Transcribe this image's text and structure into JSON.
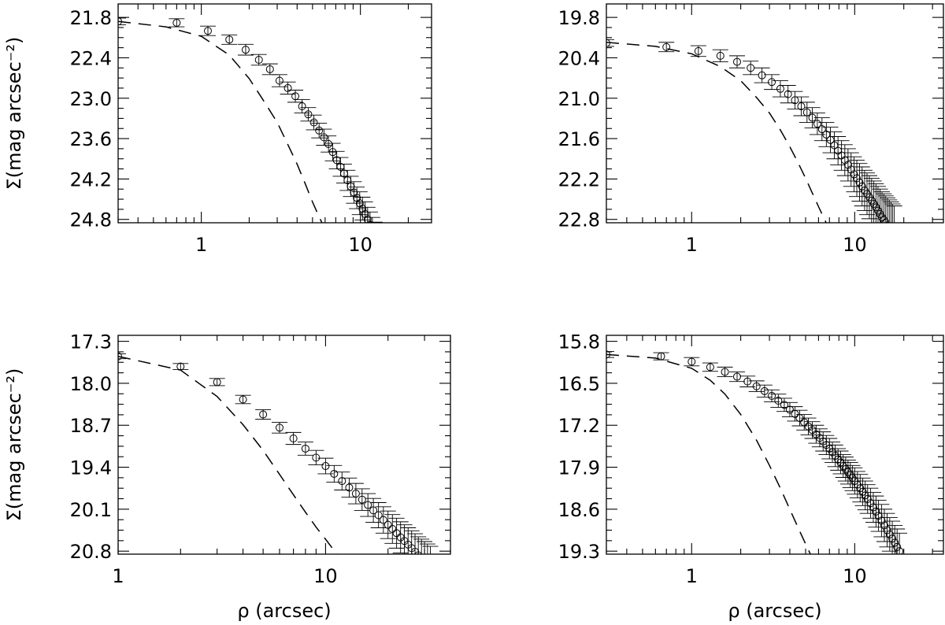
{
  "chart_data": [
    {
      "type": "scatter",
      "xscale": "log",
      "xlim": [
        0.3,
        28
      ],
      "ylim": [
        21.6,
        24.85
      ],
      "yaxis_inverted": true,
      "yticks": [
        "21.8",
        "22.4",
        "23.0",
        "23.6",
        "24.2",
        "24.8"
      ],
      "xticks": [
        "1",
        "10"
      ],
      "ylabel": "Σ(mag arcsec⁻²)",
      "xlabel": "",
      "series": [
        {
          "kind": "points_with_errors",
          "x": [
            0.3,
            0.7,
            1.1,
            1.5,
            1.9,
            2.3,
            2.7,
            3.1,
            3.5,
            3.9,
            4.3,
            4.7,
            5.1,
            5.5,
            5.9,
            6.3,
            6.7,
            7.1,
            7.5,
            7.9,
            8.3,
            8.7,
            9.1,
            9.5,
            9.9,
            10.3,
            10.7,
            11.1,
            11.5,
            11.9,
            12.3
          ],
          "y": [
            21.86,
            21.88,
            22.0,
            22.13,
            22.28,
            22.43,
            22.57,
            22.74,
            22.85,
            22.97,
            23.12,
            23.24,
            23.36,
            23.48,
            23.58,
            23.68,
            23.8,
            23.92,
            24.02,
            24.12,
            24.22,
            24.31,
            24.4,
            24.48,
            24.56,
            24.64,
            24.72,
            24.8,
            24.88,
            24.96,
            25.04
          ],
          "yerr": [
            0.05,
            0.06,
            0.07,
            0.07,
            0.08,
            0.08,
            0.08,
            0.09,
            0.09,
            0.09,
            0.1,
            0.1,
            0.11,
            0.11,
            0.12,
            0.12,
            0.13,
            0.13,
            0.14,
            0.14,
            0.15,
            0.15,
            0.16,
            0.16,
            0.17,
            0.17,
            0.18,
            0.18,
            0.19,
            0.19,
            0.2
          ]
        },
        {
          "kind": "dashed_line",
          "x": [
            0.3,
            0.6,
            1.0,
            1.5,
            2.0,
            2.5,
            3.0,
            3.5,
            4.0,
            4.5,
            5.0,
            5.5,
            6.0
          ],
          "y": [
            21.86,
            21.94,
            22.08,
            22.36,
            22.71,
            23.06,
            23.36,
            23.69,
            23.98,
            24.27,
            24.54,
            24.76,
            24.95
          ]
        }
      ]
    },
    {
      "type": "scatter",
      "xscale": "log",
      "xlim": [
        0.3,
        35
      ],
      "ylim": [
        19.6,
        22.85
      ],
      "yaxis_inverted": true,
      "yticks": [
        "19.8",
        "20.4",
        "21.0",
        "21.6",
        "22.2",
        "22.8"
      ],
      "xticks": [
        "1",
        "10"
      ],
      "ylabel": "",
      "xlabel": "",
      "series": [
        {
          "kind": "points_with_errors",
          "x": [
            0.3,
            0.7,
            1.1,
            1.5,
            1.9,
            2.3,
            2.7,
            3.1,
            3.5,
            3.9,
            4.3,
            4.7,
            5.1,
            5.5,
            5.9,
            6.3,
            6.7,
            7.1,
            7.5,
            7.9,
            8.3,
            8.7,
            9.1,
            9.5,
            9.9,
            10.3,
            10.7,
            11.1,
            11.5,
            11.9,
            12.3,
            12.7,
            13.1,
            13.5,
            13.9,
            14.3,
            14.7,
            15.1,
            15.5,
            15.9,
            16.3,
            16.7,
            17.1,
            17.5
          ],
          "y": [
            20.18,
            20.24,
            20.3,
            20.37,
            20.46,
            20.55,
            20.66,
            20.76,
            20.86,
            20.94,
            21.03,
            21.12,
            21.21,
            21.29,
            21.38,
            21.46,
            21.54,
            21.62,
            21.7,
            21.78,
            21.85,
            21.92,
            21.99,
            22.06,
            22.13,
            22.19,
            22.25,
            22.31,
            22.37,
            22.42,
            22.47,
            22.52,
            22.57,
            22.62,
            22.67,
            22.72,
            22.77,
            22.81,
            22.85,
            22.89,
            22.93,
            22.97,
            23.01,
            23.05
          ],
          "yerr": [
            0.05,
            0.07,
            0.08,
            0.09,
            0.09,
            0.1,
            0.11,
            0.11,
            0.12,
            0.13,
            0.13,
            0.14,
            0.15,
            0.15,
            0.16,
            0.17,
            0.18,
            0.19,
            0.2,
            0.21,
            0.22,
            0.23,
            0.24,
            0.25,
            0.26,
            0.27,
            0.28,
            0.29,
            0.3,
            0.31,
            0.32,
            0.33,
            0.34,
            0.35,
            0.36,
            0.37,
            0.38,
            0.39,
            0.4,
            0.41,
            0.42,
            0.43,
            0.44,
            0.45
          ]
        },
        {
          "kind": "dashed_line",
          "x": [
            0.3,
            0.6,
            1.0,
            1.5,
            2.0,
            2.5,
            3.0,
            3.5,
            4.0,
            4.5,
            5.0,
            5.5,
            6.0,
            6.5,
            7.0
          ],
          "y": [
            20.17,
            20.23,
            20.34,
            20.53,
            20.74,
            20.99,
            21.22,
            21.47,
            21.72,
            21.96,
            22.19,
            22.41,
            22.61,
            22.79,
            22.95
          ]
        }
      ]
    },
    {
      "type": "scatter",
      "xscale": "log",
      "xlim": [
        1,
        40
      ],
      "ylim": [
        17.2,
        20.85
      ],
      "yaxis_inverted": true,
      "yticks": [
        "17.3",
        "18.0",
        "18.7",
        "19.4",
        "20.1",
        "20.8"
      ],
      "xticks": [
        "1",
        "10"
      ],
      "ylabel": "Σ(mag arcsec⁻²)",
      "xlabel": "ρ (arcsec)",
      "series": [
        {
          "kind": "points_with_errors",
          "x": [
            1,
            2,
            3,
            4,
            5,
            6,
            7,
            8,
            9,
            10,
            11,
            12,
            13,
            14,
            15,
            16,
            17,
            18,
            19,
            20,
            21,
            22,
            23,
            24,
            25,
            26,
            27,
            28,
            29,
            30,
            31,
            32
          ],
          "y": [
            17.55,
            17.72,
            17.98,
            18.27,
            18.52,
            18.74,
            18.92,
            19.09,
            19.24,
            19.38,
            19.51,
            19.63,
            19.74,
            19.84,
            19.94,
            20.03,
            20.12,
            20.2,
            20.28,
            20.36,
            20.43,
            20.5,
            20.57,
            20.63,
            20.69,
            20.75,
            20.81,
            20.87,
            20.92,
            20.97,
            21.02,
            21.07
          ],
          "yerr": [
            0.04,
            0.05,
            0.06,
            0.07,
            0.08,
            0.09,
            0.1,
            0.11,
            0.12,
            0.13,
            0.14,
            0.15,
            0.16,
            0.17,
            0.18,
            0.19,
            0.2,
            0.21,
            0.22,
            0.23,
            0.24,
            0.25,
            0.26,
            0.27,
            0.28,
            0.29,
            0.3,
            0.31,
            0.32,
            0.33,
            0.34,
            0.35
          ]
        },
        {
          "kind": "dashed_line",
          "x": [
            1,
            2,
            3,
            4,
            5,
            6,
            7,
            8,
            9,
            10,
            11,
            12,
            13
          ],
          "y": [
            17.55,
            17.78,
            18.22,
            18.69,
            19.12,
            19.52,
            19.86,
            20.15,
            20.4,
            20.6,
            20.79,
            20.95,
            21.1
          ]
        }
      ]
    },
    {
      "type": "scatter",
      "xscale": "log",
      "xlim": [
        0.3,
        35
      ],
      "ylim": [
        15.7,
        19.35
      ],
      "yaxis_inverted": true,
      "yticks": [
        "15.8",
        "16.5",
        "17.2",
        "17.9",
        "18.6",
        "19.3"
      ],
      "xticks": [
        "1",
        "10"
      ],
      "ylabel": "",
      "xlabel": "ρ (arcsec)",
      "series": [
        {
          "kind": "points_with_errors",
          "x": [
            0.3,
            0.65,
            1.0,
            1.3,
            1.6,
            1.9,
            2.2,
            2.5,
            2.8,
            3.1,
            3.4,
            3.7,
            4.0,
            4.3,
            4.6,
            4.9,
            5.2,
            5.5,
            5.8,
            6.1,
            6.4,
            6.7,
            7.0,
            7.3,
            7.6,
            7.9,
            8.2,
            8.5,
            8.8,
            9.1,
            9.4,
            9.7,
            10.0,
            10.4,
            10.8,
            11.2,
            11.6,
            12.0,
            12.5,
            13.0,
            13.5,
            14.0,
            14.6,
            15.2,
            15.8,
            16.4,
            17.0,
            17.6,
            18.2,
            18.8
          ],
          "y": [
            16.02,
            16.05,
            16.14,
            16.23,
            16.31,
            16.39,
            16.47,
            16.55,
            16.63,
            16.71,
            16.79,
            16.86,
            16.94,
            17.01,
            17.08,
            17.15,
            17.22,
            17.28,
            17.35,
            17.41,
            17.47,
            17.53,
            17.59,
            17.65,
            17.71,
            17.77,
            17.82,
            17.88,
            17.93,
            17.98,
            18.03,
            18.08,
            18.13,
            18.19,
            18.25,
            18.31,
            18.37,
            18.43,
            18.5,
            18.57,
            18.64,
            18.71,
            18.79,
            18.87,
            18.95,
            19.02,
            19.09,
            19.16,
            19.23,
            19.3
          ],
          "yerr": [
            0.05,
            0.06,
            0.07,
            0.07,
            0.08,
            0.08,
            0.09,
            0.09,
            0.1,
            0.1,
            0.11,
            0.11,
            0.12,
            0.12,
            0.13,
            0.13,
            0.14,
            0.14,
            0.15,
            0.15,
            0.16,
            0.16,
            0.17,
            0.17,
            0.18,
            0.18,
            0.19,
            0.19,
            0.2,
            0.2,
            0.21,
            0.21,
            0.22,
            0.22,
            0.23,
            0.23,
            0.24,
            0.24,
            0.25,
            0.25,
            0.26,
            0.26,
            0.27,
            0.27,
            0.28,
            0.28,
            0.29,
            0.29,
            0.3,
            0.3
          ]
        },
        {
          "kind": "dashed_line",
          "x": [
            0.3,
            0.6,
            1.0,
            1.3,
            1.6,
            2.0,
            2.5,
            3.0,
            3.5,
            4.0,
            4.5,
            5.0,
            5.5,
            6.0
          ],
          "y": [
            16.02,
            16.08,
            16.25,
            16.45,
            16.68,
            17.02,
            17.45,
            17.87,
            18.25,
            18.6,
            18.91,
            19.18,
            19.42,
            19.63
          ]
        }
      ]
    }
  ]
}
